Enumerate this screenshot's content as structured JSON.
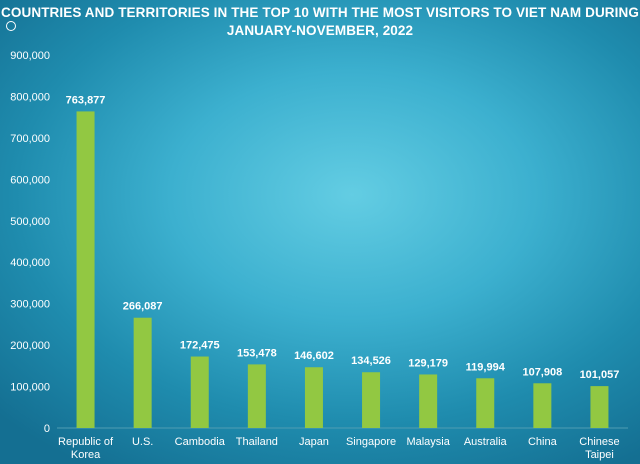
{
  "chart_data": {
    "type": "bar",
    "title_lines": [
      "COUNTRIES  AND TERRITORIES IN THE TOP 10 WITH THE MOST VISITORS TO VIET NAM DURING",
      "JANUARY-NOVEMBER,  2022"
    ],
    "categories": [
      [
        "Republic of",
        "Korea"
      ],
      [
        "U.S."
      ],
      [
        "Cambodia"
      ],
      [
        "Thailand"
      ],
      [
        "Japan"
      ],
      [
        "Singapore"
      ],
      [
        "Malaysia"
      ],
      [
        "Australia"
      ],
      [
        "China"
      ],
      [
        "Chinese",
        "Taipei"
      ]
    ],
    "values": [
      763877,
      266087,
      172475,
      153478,
      146602,
      134526,
      129179,
      119994,
      107908,
      101057
    ],
    "value_labels": [
      "763,877",
      "266,087",
      "172,475",
      "153,478",
      "146,602",
      "134,526",
      "129,179",
      "119,994",
      "107,908",
      "101,057"
    ],
    "ylim": [
      0,
      900000
    ],
    "yticks": [
      0,
      100000,
      200000,
      300000,
      400000,
      500000,
      600000,
      700000,
      800000,
      900000
    ],
    "ytick_labels": [
      "0",
      "100,000",
      "200,000",
      "300,000",
      "400,000",
      "500,000",
      "600,000",
      "700,000",
      "800,000",
      "900,000"
    ],
    "xlabel": "",
    "ylabel": "",
    "grid": false,
    "legend": "none",
    "bar_color": "#92c842"
  }
}
